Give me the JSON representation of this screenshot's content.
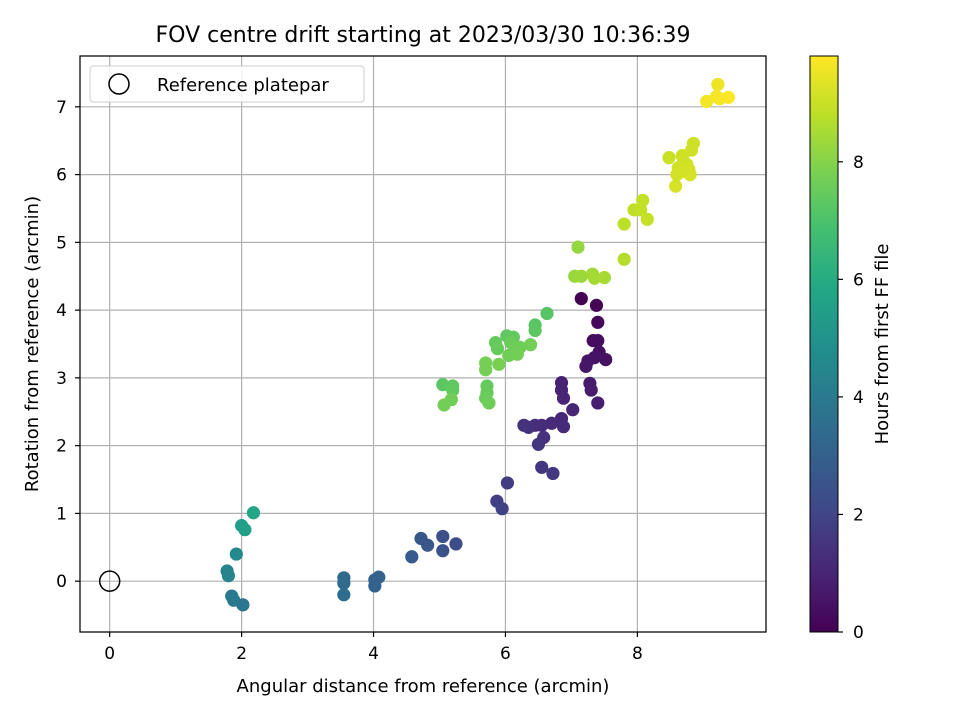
{
  "chart_data": {
    "type": "scatter",
    "title": "FOV centre drift starting at 2023/03/30 10:36:39",
    "xlabel": "Angular distance from reference (arcmin)",
    "ylabel": "Rotation from reference (arcmin)",
    "xlim": [
      -0.45,
      9.95
    ],
    "ylim": [
      -0.75,
      7.75
    ],
    "x_ticks": [
      0,
      2,
      4,
      6,
      8
    ],
    "y_ticks": [
      0,
      1,
      2,
      3,
      4,
      5,
      6,
      7
    ],
    "grid": true,
    "legend": {
      "placement": "top-left",
      "entries": [
        "Reference platepar"
      ]
    },
    "reference_point": {
      "x": 0,
      "y": 0,
      "label": "Reference platepar"
    },
    "colorbar": {
      "label": "Hours from first FF file",
      "colormap": "viridis",
      "range": [
        0,
        9.8
      ],
      "ticks": [
        0,
        2,
        4,
        6,
        8
      ]
    },
    "series": [
      {
        "columns": [
          "x",
          "y",
          "hours"
        ],
        "points": [
          [
            7.15,
            4.17,
            0.0
          ],
          [
            7.38,
            4.07,
            0.1
          ],
          [
            7.4,
            3.82,
            0.2
          ],
          [
            7.33,
            3.55,
            0.3
          ],
          [
            7.4,
            3.55,
            0.35
          ],
          [
            7.42,
            3.38,
            0.4
          ],
          [
            7.52,
            3.27,
            0.45
          ],
          [
            7.35,
            3.3,
            0.5
          ],
          [
            7.25,
            3.25,
            0.55
          ],
          [
            7.22,
            3.17,
            0.6
          ],
          [
            7.28,
            2.92,
            0.7
          ],
          [
            7.3,
            2.82,
            0.75
          ],
          [
            7.4,
            2.63,
            0.8
          ],
          [
            6.85,
            2.93,
            0.9
          ],
          [
            6.85,
            2.82,
            0.95
          ],
          [
            6.88,
            2.7,
            1.0
          ],
          [
            7.02,
            2.53,
            1.05
          ],
          [
            6.85,
            2.4,
            1.1
          ],
          [
            6.7,
            2.33,
            1.15
          ],
          [
            6.88,
            2.28,
            1.2
          ],
          [
            6.55,
            2.3,
            1.25
          ],
          [
            6.45,
            2.3,
            1.3
          ],
          [
            6.35,
            2.27,
            1.35
          ],
          [
            6.28,
            2.3,
            1.4
          ],
          [
            6.58,
            2.12,
            1.45
          ],
          [
            6.5,
            2.02,
            1.5
          ],
          [
            6.55,
            1.68,
            1.55
          ],
          [
            6.72,
            1.59,
            1.6
          ],
          [
            6.03,
            1.45,
            1.7
          ],
          [
            5.87,
            1.18,
            1.8
          ],
          [
            5.95,
            1.07,
            1.9
          ],
          [
            5.25,
            0.55,
            2.3
          ],
          [
            5.05,
            0.66,
            2.4
          ],
          [
            5.05,
            0.45,
            2.5
          ],
          [
            4.72,
            0.63,
            2.6
          ],
          [
            4.82,
            0.53,
            2.7
          ],
          [
            4.58,
            0.36,
            2.8
          ],
          [
            4.08,
            0.06,
            3.0
          ],
          [
            4.02,
            0.02,
            3.05
          ],
          [
            4.02,
            -0.07,
            3.1
          ],
          [
            3.55,
            0.05,
            3.3
          ],
          [
            3.55,
            -0.03,
            3.4
          ],
          [
            3.55,
            -0.2,
            3.5
          ],
          [
            2.02,
            -0.35,
            3.8
          ],
          [
            1.88,
            -0.28,
            3.9
          ],
          [
            1.85,
            -0.22,
            4.0
          ],
          [
            1.78,
            0.15,
            4.3
          ],
          [
            1.8,
            0.08,
            4.4
          ],
          [
            1.92,
            0.4,
            4.6
          ],
          [
            2.0,
            0.82,
            5.4
          ],
          [
            2.05,
            0.76,
            5.5
          ],
          [
            2.18,
            1.01,
            5.8
          ],
          [
            6.63,
            3.95,
            7.2
          ],
          [
            6.45,
            3.78,
            7.25
          ],
          [
            6.45,
            3.7,
            7.3
          ],
          [
            6.02,
            3.62,
            7.35
          ],
          [
            6.12,
            3.6,
            7.4
          ],
          [
            5.85,
            3.52,
            7.45
          ],
          [
            5.88,
            3.43,
            7.5
          ],
          [
            6.08,
            3.52,
            7.55
          ],
          [
            6.15,
            3.45,
            7.6
          ],
          [
            6.22,
            3.45,
            7.6
          ],
          [
            6.05,
            3.33,
            7.65
          ],
          [
            6.18,
            3.35,
            7.7
          ],
          [
            6.38,
            3.49,
            7.7
          ],
          [
            5.7,
            3.22,
            7.75
          ],
          [
            5.7,
            3.12,
            7.75
          ],
          [
            5.9,
            3.2,
            7.8
          ],
          [
            5.05,
            2.9,
            7.3
          ],
          [
            5.2,
            2.88,
            7.35
          ],
          [
            5.2,
            2.82,
            7.4
          ],
          [
            5.72,
            2.88,
            7.45
          ],
          [
            5.72,
            2.78,
            7.5
          ],
          [
            5.7,
            2.7,
            7.55
          ],
          [
            5.75,
            2.63,
            7.6
          ],
          [
            5.18,
            2.68,
            7.65
          ],
          [
            5.07,
            2.6,
            7.7
          ],
          [
            7.1,
            4.93,
            8.2
          ],
          [
            7.05,
            4.5,
            8.3
          ],
          [
            7.15,
            4.5,
            8.35
          ],
          [
            7.32,
            4.53,
            8.4
          ],
          [
            7.35,
            4.47,
            8.45
          ],
          [
            7.5,
            4.48,
            8.5
          ],
          [
            7.8,
            4.75,
            8.7
          ],
          [
            7.8,
            5.27,
            8.8
          ],
          [
            7.95,
            5.48,
            8.85
          ],
          [
            8.05,
            5.48,
            8.9
          ],
          [
            8.08,
            5.62,
            8.9
          ],
          [
            8.15,
            5.34,
            8.95
          ],
          [
            8.48,
            6.25,
            9.0
          ],
          [
            8.68,
            6.28,
            9.05
          ],
          [
            8.85,
            6.46,
            9.05
          ],
          [
            8.82,
            6.36,
            9.1
          ],
          [
            8.7,
            6.2,
            9.1
          ],
          [
            8.75,
            6.15,
            9.1
          ],
          [
            8.62,
            6.1,
            9.1
          ],
          [
            8.78,
            6.08,
            9.15
          ],
          [
            8.6,
            6.0,
            9.15
          ],
          [
            8.7,
            6.05,
            9.15
          ],
          [
            8.8,
            6.0,
            9.2
          ],
          [
            8.58,
            5.83,
            9.2
          ],
          [
            9.22,
            7.33,
            9.6
          ],
          [
            9.05,
            7.08,
            9.65
          ],
          [
            9.2,
            7.15,
            9.7
          ],
          [
            9.25,
            7.12,
            9.7
          ],
          [
            9.38,
            7.14,
            9.75
          ]
        ]
      }
    ]
  }
}
